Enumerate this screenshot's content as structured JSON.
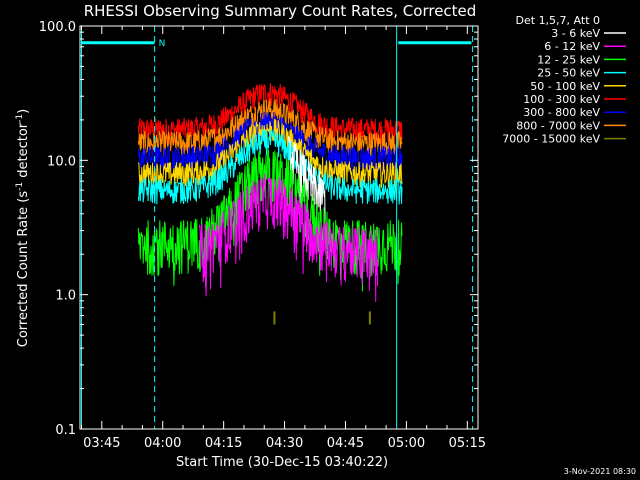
{
  "colors": {
    "background": "#000000",
    "axis": "#ffffff",
    "attenuator": "#00ffff"
  },
  "chart_data": {
    "type": "line",
    "title": "RHESSI Observing Summary Count Rates, Corrected",
    "xlabel": "Start Time (30-Dec-15 03:40:22)",
    "ylabel_main": "Corrected Count Rate (s",
    "ylabel_sup1": "-1",
    "ylabel_mid": " detector",
    "ylabel_sup2": "-1",
    "ylabel_end": ")",
    "y_scale": "log",
    "ylim": [
      0.1,
      100.0
    ],
    "xlim_minutes": [
      -0.37,
      97.63
    ],
    "y_ticks": [
      {
        "value": 0.1,
        "label": "0.1"
      },
      {
        "value": 1.0,
        "label": "1.0"
      },
      {
        "value": 10.0,
        "label": "10.0"
      },
      {
        "value": 100.0,
        "label": "100.0"
      }
    ],
    "x_ticks": [
      {
        "minute": 5,
        "label": "03:45"
      },
      {
        "minute": 20,
        "label": "04:00"
      },
      {
        "minute": 35,
        "label": "04:15"
      },
      {
        "minute": 50,
        "label": "04:30"
      },
      {
        "minute": 65,
        "label": "04:45"
      },
      {
        "minute": 80,
        "label": "05:00"
      },
      {
        "minute": 95,
        "label": "05:15"
      }
    ],
    "legend_header": "Det 1,5,7, Att 0",
    "legend_placement": "right",
    "attenuator": {
      "night_label": "N",
      "night_marker_minute": 18.5,
      "dashed_lines_minutes": [
        18.0,
        96.3
      ],
      "solid_lines_minutes": [
        0.0,
        77.6
      ],
      "bar_segments": [
        [
          0.0,
          18.0
        ],
        [
          78.0,
          96.0
        ]
      ],
      "bar_level": 75
    },
    "data_range_minutes": [
      14.0,
      79.0
    ],
    "peak_minute": 46.0,
    "series": [
      {
        "name": "3 - 6 keV",
        "color": "#ffffff",
        "base": 4.5,
        "peak": 13,
        "start": 51,
        "end": 60
      },
      {
        "name": "6 - 12 keV",
        "color": "#ff00ff",
        "base": 2.2,
        "peak": 5.5,
        "start": 29,
        "end": 73
      },
      {
        "name": "12 - 25 keV",
        "color": "#00ff00",
        "base": 2.5,
        "peak": 8.5,
        "start": 14,
        "end": 79
      },
      {
        "name": "25 - 50 keV",
        "color": "#00ffff",
        "base": 6.0,
        "peak": 14,
        "start": 14,
        "end": 79
      },
      {
        "name": "50 - 100 keV",
        "color": "#ffd700",
        "base": 8.0,
        "peak": 17,
        "start": 14,
        "end": 79
      },
      {
        "name": "100 - 300 keV",
        "color": "#ff0000",
        "base": 17,
        "peak": 32,
        "start": 14,
        "end": 79
      },
      {
        "name": "300 - 800 keV",
        "color": "#0000ff",
        "base": 10.5,
        "peak": 19,
        "start": 14,
        "end": 79
      },
      {
        "name": "800 - 7000 keV",
        "color": "#ff8c00",
        "base": 13.5,
        "peak": 24,
        "start": 14,
        "end": 79
      },
      {
        "name": "7000 - 15000 keV",
        "color": "#808000",
        "base": 0.6,
        "peak": 0.6,
        "start": 0,
        "end": 0
      }
    ],
    "spike_minutes_olive": [
      47.5,
      71.0
    ],
    "timestamp": "3-Nov-2021 08:30"
  }
}
